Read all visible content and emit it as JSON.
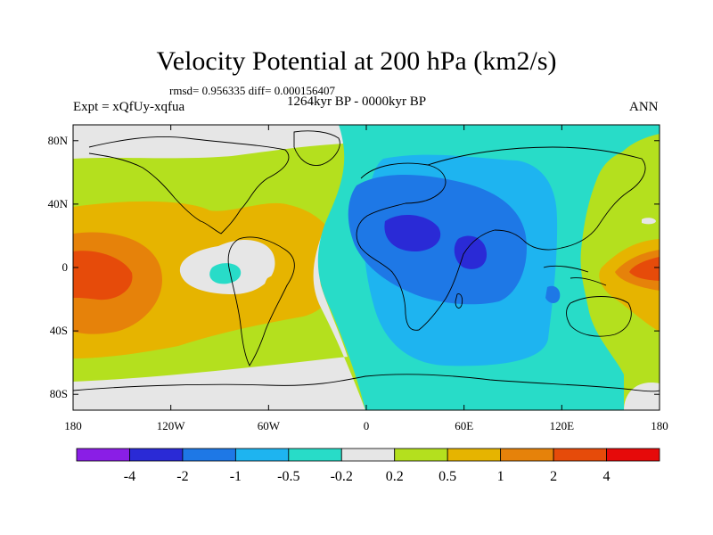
{
  "title": "Velocity Potential at 200 hPa (km2/s)",
  "stats": "rmsd= 0.956335 diff= 0.000156407",
  "period": "1264kyr BP - 0000kyr BP",
  "experiment": "Expt = xQfUy-xqfua",
  "season": "ANN",
  "map": {
    "y_ticks": [
      {
        "label": "80N",
        "lat": 80
      },
      {
        "label": "40N",
        "lat": 40
      },
      {
        "label": "0",
        "lat": 0
      },
      {
        "label": "40S",
        "lat": -40
      },
      {
        "label": "80S",
        "lat": -80
      }
    ],
    "x_ticks": [
      {
        "label": "180",
        "lon": -180
      },
      {
        "label": "120W",
        "lon": -120
      },
      {
        "label": "60W",
        "lon": -60
      },
      {
        "label": "0",
        "lon": 0
      },
      {
        "label": "60E",
        "lon": 60
      },
      {
        "label": "120E",
        "lon": 120
      },
      {
        "label": "180",
        "lon": 180
      }
    ]
  },
  "colorbar": {
    "colors": [
      "#8a1ee6",
      "#2a2ad6",
      "#1e78e6",
      "#1eb4f0",
      "#28dcc8",
      "#e6e6e6",
      "#b4e01e",
      "#e6b400",
      "#e6820a",
      "#e64b0a",
      "#e60a0a"
    ],
    "labels": [
      "-4",
      "-2",
      "-1",
      "-0.5",
      "-0.2",
      "0.2",
      "0.5",
      "1",
      "2",
      "4"
    ]
  }
}
